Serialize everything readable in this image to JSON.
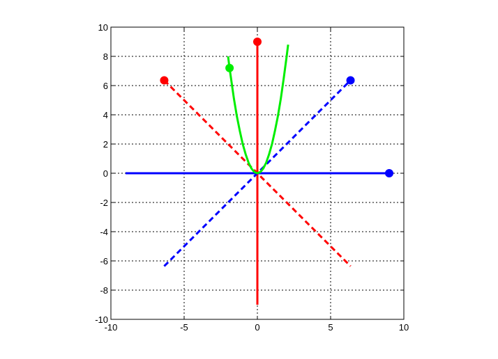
{
  "chart_data": {
    "type": "line",
    "title": "",
    "xlabel": "",
    "ylabel": "",
    "xlim": [
      -10,
      10
    ],
    "ylim": [
      -10,
      10
    ],
    "grid": true,
    "legend": "none",
    "x_ticks": [
      -10,
      -5,
      0,
      5,
      10
    ],
    "x_tick_labels": [
      "-10",
      "-5",
      "0",
      "5",
      "10"
    ],
    "y_ticks": [
      -10,
      -8,
      -6,
      -4,
      -2,
      0,
      2,
      4,
      6,
      8,
      10
    ],
    "y_tick_labels": [
      "-10",
      "-8",
      "-6",
      "-4",
      "-2",
      "0",
      "2",
      "4",
      "6",
      "8",
      "10"
    ],
    "series": [
      {
        "color": "#0000ff",
        "style": "solid",
        "points": [
          [
            -9,
            0
          ],
          [
            9,
            0
          ]
        ],
        "marker": [
          9,
          0
        ]
      },
      {
        "color": "#ff0000",
        "style": "solid",
        "points": [
          [
            0,
            -9
          ],
          [
            0,
            9
          ]
        ],
        "marker": [
          0,
          9
        ]
      },
      {
        "color": "#0000ff",
        "style": "dashed",
        "points": [
          [
            -6.36,
            -6.36
          ],
          [
            6.36,
            6.36
          ]
        ],
        "marker": [
          6.36,
          6.36
        ]
      },
      {
        "color": "#ff0000",
        "style": "dashed",
        "points": [
          [
            -6.36,
            6.36
          ],
          [
            6.36,
            -6.36
          ]
        ],
        "marker": [
          -6.36,
          6.36
        ]
      },
      {
        "color": "#00ee00",
        "style": "solid",
        "points": [
          [
            -2.0,
            8.0
          ],
          [
            -1.9,
            7.2
          ],
          [
            -1.8,
            6.5
          ],
          [
            -1.6,
            5.1
          ],
          [
            -1.4,
            3.9
          ],
          [
            -1.2,
            2.9
          ],
          [
            -1.0,
            2.0
          ],
          [
            -0.8,
            1.3
          ],
          [
            -0.6,
            0.72
          ],
          [
            -0.4,
            0.32
          ],
          [
            -0.2,
            0.08
          ],
          [
            0,
            0
          ],
          [
            0.2,
            0.08
          ],
          [
            0.4,
            0.32
          ],
          [
            0.6,
            0.72
          ],
          [
            0.8,
            1.3
          ],
          [
            1.0,
            2.0
          ],
          [
            1.2,
            2.9
          ],
          [
            1.4,
            3.9
          ],
          [
            1.6,
            5.1
          ],
          [
            1.8,
            6.5
          ],
          [
            2.0,
            8.0
          ],
          [
            2.1,
            8.8
          ]
        ],
        "marker": [
          -1.9,
          7.2
        ]
      }
    ]
  }
}
